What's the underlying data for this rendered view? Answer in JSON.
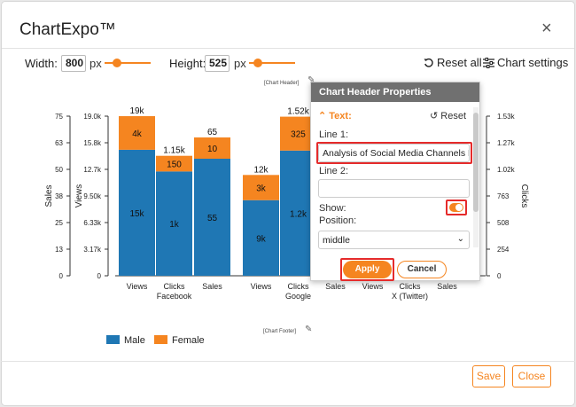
{
  "app": {
    "title": "ChartExpo™",
    "close_glyph": "×"
  },
  "controls": {
    "width_label": "Width:",
    "width_value": "800",
    "width_unit": "px",
    "height_label": "Height:",
    "height_value": "525",
    "height_unit": "px",
    "reset_all": "Reset all",
    "chart_settings": "Chart settings"
  },
  "chart_header_placeholder": "[Chart Header]",
  "chart_footer_placeholder": "[Chart Footer]",
  "chart_data": {
    "type": "bar",
    "stacked": true,
    "groups": [
      {
        "name": "Facebook",
        "categories": [
          "Views",
          "Clicks",
          "Sales"
        ]
      },
      {
        "name": "Google",
        "categories": [
          "Views",
          "Clicks",
          "Sales"
        ]
      },
      {
        "name": "X (Twitter)",
        "categories": [
          "Views",
          "Clicks",
          "Sales"
        ]
      }
    ],
    "series": [
      {
        "name": "Male",
        "color": "#1f77b4",
        "values": [
          15000,
          1000,
          55,
          9000,
          1200,
          null,
          null,
          null,
          null
        ],
        "labels": [
          "15k",
          "1k",
          "55",
          "9k",
          "1.2k",
          "",
          "",
          "",
          ""
        ]
      },
      {
        "name": "Female",
        "color": "#f58520",
        "values": [
          4000,
          150,
          10,
          3000,
          325,
          null,
          null,
          null,
          null
        ],
        "labels": [
          "4k",
          "150",
          "10",
          "3k",
          "325",
          "",
          "",
          "",
          ""
        ]
      }
    ],
    "totals": [
      "19k",
      "1.15k",
      "65",
      "12k",
      "1.52k",
      "",
      "",
      "",
      ""
    ],
    "axes": [
      {
        "title": "Sales",
        "ticks": [
          "0",
          "13",
          "25",
          "38",
          "50",
          "63",
          "75"
        ],
        "side": "left"
      },
      {
        "title": "Views",
        "ticks": [
          "0",
          "3.17k",
          "6.33k",
          "9.50k",
          "12.7k",
          "15.8k",
          "19.0k"
        ],
        "side": "left"
      },
      {
        "title": "Clicks",
        "ticks": [
          "0",
          "254",
          "508",
          "763",
          "1.02k",
          "1.27k",
          "1.53k"
        ],
        "side": "right"
      }
    ],
    "ylim_views": [
      0,
      19000
    ],
    "ylim_clicks": [
      0,
      1530
    ],
    "ylim_sales": [
      0,
      75
    ]
  },
  "legend": {
    "male": "Male",
    "female": "Female",
    "male_color": "#1f77b4",
    "female_color": "#f58520"
  },
  "props": {
    "title": "Chart Header Properties",
    "section": "Text:",
    "reset": "Reset",
    "line1_label": "Line 1:",
    "line1_value": "Analysis of Social Media Channels Perfc",
    "line2_label": "Line 2:",
    "line2_value": "",
    "show_label": "Show:",
    "show_on": true,
    "position_label": "Position:",
    "position_value": "middle",
    "apply": "Apply",
    "cancel": "Cancel"
  },
  "footer": {
    "save": "Save",
    "close": "Close"
  }
}
